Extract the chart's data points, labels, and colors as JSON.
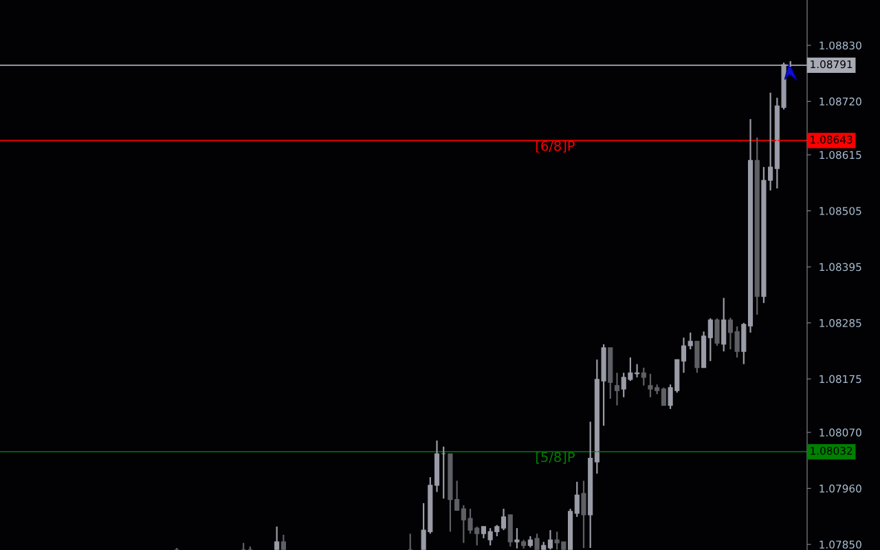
{
  "chart_data": {
    "type": "candlestick",
    "categories": [
      null,
      null,
      null,
      null,
      null,
      null,
      null,
      null,
      null,
      null,
      null,
      null,
      null,
      null,
      null,
      null,
      null,
      null,
      null,
      null,
      null,
      null,
      null,
      null,
      null,
      null,
      null,
      null,
      null,
      null,
      null,
      null,
      null,
      null,
      null,
      null,
      null,
      null,
      null,
      null,
      null,
      null,
      null,
      null,
      null,
      null,
      null,
      null,
      null,
      null,
      null,
      null,
      null,
      null,
      null,
      null,
      null,
      null,
      null,
      null,
      null,
      null,
      null,
      null,
      null,
      null,
      null,
      null,
      null,
      null,
      null,
      null,
      null,
      null,
      null,
      null,
      null,
      null,
      null,
      null,
      null,
      null,
      null,
      null,
      null,
      null,
      null,
      null,
      null,
      null,
      null,
      null,
      null,
      null,
      null,
      null,
      null,
      null,
      null,
      null,
      null,
      null,
      null,
      null,
      null,
      null,
      null,
      null,
      null,
      null,
      null,
      null,
      null,
      null,
      null,
      null,
      null,
      null,
      null,
      null,
      null
    ],
    "ohlc": [
      null,
      null,
      null,
      null,
      null,
      null,
      null,
      null,
      null,
      null,
      null,
      null,
      null,
      null,
      null,
      null,
      null,
      null,
      null,
      null,
      null,
      null,
      null,
      null,
      null,
      null,
      [
        1.0784,
        1.07843,
        1.0784,
        1.0784
      ],
      null,
      null,
      null,
      null,
      null,
      null,
      null,
      null,
      null,
      [
        1.0784,
        1.07853,
        1.0784,
        1.0784
      ],
      [
        1.0784,
        1.07846,
        1.0784,
        1.0784
      ],
      null,
      null,
      null,
      [
        1.0784,
        1.07885,
        1.0784,
        1.07855
      ],
      [
        1.07855,
        1.07869,
        1.0784,
        1.0784
      ],
      null,
      null,
      null,
      null,
      null,
      null,
      null,
      null,
      null,
      null,
      null,
      null,
      null,
      null,
      null,
      null,
      null,
      null,
      [
        1.0784,
        1.07871,
        1.0784,
        1.0784
      ],
      null,
      [
        1.0784,
        1.07931,
        1.0784,
        1.07878
      ],
      [
        1.07875,
        1.07982,
        1.07871,
        1.07966
      ],
      [
        1.07966,
        1.08054,
        1.07953,
        1.08028
      ],
      [
        1.08028,
        1.08042,
        1.0794,
        1.08028
      ],
      [
        1.08028,
        1.08028,
        1.07875,
        1.07938
      ],
      [
        1.07938,
        1.07975,
        1.07916,
        1.07917
      ],
      [
        1.0792,
        1.07927,
        1.07853,
        1.07898
      ],
      [
        1.07901,
        1.0792,
        1.07871,
        1.07878
      ],
      [
        1.07882,
        1.07885,
        1.07848,
        1.07871
      ],
      [
        1.07871,
        1.07885,
        1.07862,
        1.07885
      ],
      [
        1.07859,
        1.07882,
        1.07848,
        1.07875
      ],
      [
        1.07875,
        1.07888,
        1.07866,
        1.07885
      ],
      [
        1.07882,
        1.0792,
        1.07878,
        1.07904
      ],
      [
        1.07908,
        1.07908,
        1.07846,
        1.07855
      ],
      [
        1.07855,
        1.07882,
        1.07842,
        1.07859
      ],
      [
        1.07855,
        1.07859,
        1.07842,
        1.07848
      ],
      [
        1.07848,
        1.07866,
        1.07844,
        1.07859
      ],
      [
        1.07862,
        1.07871,
        1.0784,
        1.0784
      ],
      [
        1.0784,
        1.07855,
        1.0784,
        1.07848
      ],
      [
        1.07843,
        1.07878,
        1.0784,
        1.07859
      ],
      [
        1.07859,
        1.07875,
        1.0784,
        1.07853
      ],
      [
        1.07855,
        1.07855,
        1.0784,
        1.0784
      ],
      [
        1.0784,
        1.0792,
        1.0784,
        1.07915
      ],
      [
        1.07911,
        1.07973,
        1.07904,
        1.07947
      ],
      [
        1.0795,
        1.07975,
        1.07843,
        1.07908
      ],
      [
        1.07908,
        1.08091,
        1.07843,
        1.08019
      ],
      [
        1.08012,
        1.08213,
        1.07989,
        1.08174
      ],
      [
        1.08171,
        1.08243,
        1.08083,
        1.08236
      ],
      [
        1.08236,
        1.08236,
        1.08136,
        1.08168
      ],
      [
        1.08162,
        1.08187,
        1.08123,
        1.08152
      ],
      [
        1.08155,
        1.08187,
        1.08139,
        1.08178
      ],
      [
        1.08174,
        1.08217,
        1.08171,
        1.08187
      ],
      [
        1.08185,
        1.08204,
        1.08178,
        1.08187
      ],
      [
        1.08187,
        1.08197,
        1.08162,
        1.08178
      ],
      [
        1.08162,
        1.08185,
        1.08139,
        1.08155
      ],
      [
        1.08158,
        1.08164,
        1.08145,
        1.08152
      ],
      [
        1.08155,
        1.08158,
        1.08123,
        1.08123
      ],
      [
        1.08123,
        1.08164,
        1.08116,
        1.08158
      ],
      [
        1.08152,
        1.08213,
        1.08148,
        1.08213
      ],
      [
        1.0821,
        1.08256,
        1.08187,
        1.0824
      ],
      [
        1.0824,
        1.08266,
        1.08233,
        1.08249
      ],
      [
        1.08249,
        1.08249,
        1.08187,
        1.08197
      ],
      [
        1.08197,
        1.08268,
        1.08197,
        1.08259
      ],
      [
        1.08256,
        1.08294,
        1.0821,
        1.08291
      ],
      [
        1.08291,
        1.08294,
        1.0824,
        1.08245
      ],
      [
        1.08243,
        1.08334,
        1.08229,
        1.08291
      ],
      [
        1.08291,
        1.08295,
        1.08233,
        1.08266
      ],
      [
        1.08268,
        1.08278,
        1.08217,
        1.08229
      ],
      [
        1.08229,
        1.08285,
        1.08204,
        1.08282
      ],
      [
        1.08279,
        1.08685,
        1.08266,
        1.08604
      ],
      [
        1.08604,
        1.08649,
        1.08301,
        1.08337
      ],
      [
        1.08337,
        1.08591,
        1.08324,
        1.08565
      ],
      [
        1.08565,
        1.08737,
        1.08545,
        1.08591
      ],
      [
        1.08588,
        1.08727,
        1.08549,
        1.08711
      ],
      [
        1.08708,
        1.08796,
        1.08704,
        1.08792
      ],
      [
        1.08791,
        1.08799,
        1.08788,
        1.08791
      ],
      null,
      null
    ],
    "colors": [
      null,
      null,
      null,
      null,
      null,
      null,
      null,
      null,
      null,
      null,
      null,
      null,
      null,
      null,
      null,
      null,
      null,
      null,
      null,
      null,
      null,
      null,
      null,
      null,
      null,
      null,
      "#5f6066",
      null,
      null,
      null,
      null,
      null,
      null,
      null,
      null,
      null,
      "#5f6066",
      "#5f6066",
      null,
      null,
      null,
      "#9a9ca8",
      "#5f6066",
      null,
      null,
      null,
      null,
      null,
      null,
      null,
      null,
      null,
      null,
      null,
      null,
      null,
      null,
      null,
      null,
      null,
      null,
      "#5f6066",
      null,
      "#9a9ca8",
      "#9a9ca8",
      "#9a9ca8",
      "#9a9ca8",
      "#5f6066",
      "#5f6066",
      "#5f6066",
      "#5f6066",
      "#5f6066",
      "#9a9ca8",
      "#9a9ca8",
      "#9a9ca8",
      "#9a9ca8",
      "#5f6066",
      "#9a9ca8",
      "#5f6066",
      "#9a9ca8",
      "#5f6066",
      "#9a9ca8",
      "#9a9ca8",
      "#5f6066",
      "#5f6066",
      "#9a9ca8",
      "#9a9ca8",
      "#5f6066",
      "#9a9ca8",
      "#9a9ca8",
      "#9a9ca8",
      "#5f6066",
      "#5f6066",
      "#9a9ca8",
      "#9a9ca8",
      "#9a9ca8",
      "#5f6066",
      "#5f6066",
      "#5f6066",
      "#5f6066",
      "#9a9ca8",
      "#9a9ca8",
      "#9a9ca8",
      "#9a9ca8",
      "#5f6066",
      "#9a9ca8",
      "#9a9ca8",
      "#5f6066",
      "#9a9ca8",
      "#5f6066",
      "#5f6066",
      "#9a9ca8",
      "#9a9ca8",
      "#5f6066",
      "#9a9ca8",
      "#9a9ca8",
      "#9a9ca8",
      "#9a9ca8",
      "#9a9ca8",
      null,
      null
    ],
    "ylim": [
      1.07839,
      1.08919
    ],
    "yticks": [
      {
        "value": 1.0883,
        "label": "1.08830"
      },
      {
        "value": 1.0872,
        "label": "1.08720"
      },
      {
        "value": 1.08615,
        "label": "1.08615"
      },
      {
        "value": 1.08505,
        "label": "1.08505"
      },
      {
        "value": 1.08395,
        "label": "1.08395"
      },
      {
        "value": 1.08285,
        "label": "1.08285"
      },
      {
        "value": 1.08175,
        "label": "1.08175"
      },
      {
        "value": 1.0807,
        "label": "1.08070"
      },
      {
        "value": 1.0796,
        "label": "1.07960"
      },
      {
        "value": 1.0785,
        "label": "1.07850"
      }
    ],
    "tick_labels": "y",
    "annotations": [
      "1.08791",
      "1.08643",
      "1.08032"
    ],
    "ref_lines": [
      {
        "axis": "y",
        "value": 1.08791,
        "label": null,
        "color": "#a8abb5"
      },
      {
        "axis": "y",
        "value": 1.08643,
        "label": "[6/8]P",
        "color": "#ff0000"
      },
      {
        "axis": "y",
        "value": 1.08032,
        "label": "[5/8]P",
        "color": "#008000"
      }
    ]
  }
}
